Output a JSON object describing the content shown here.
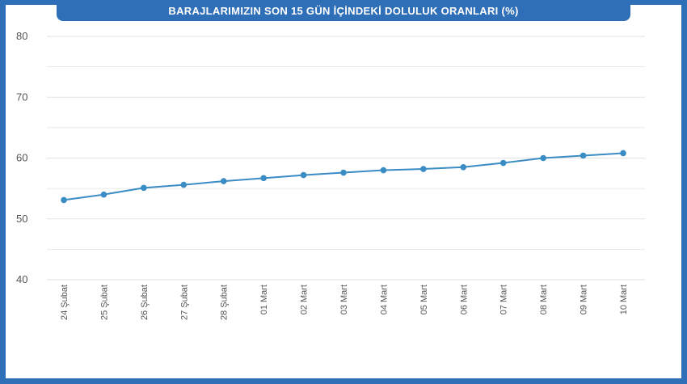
{
  "chart_data": {
    "type": "line",
    "title": "BARAJLARIMIZIN SON 15 GÜN İÇİNDEKİ DOLULUK ORANLARI (%)",
    "categories": [
      "24 Şubat",
      "25 Şubat",
      "26 Şubat",
      "27 Şubat",
      "28 Şubat",
      "01 Mart",
      "02 Mart",
      "03 Mart",
      "04 Mart",
      "05 Mart",
      "06 Mart",
      "07 Mart",
      "08 Mart",
      "09 Mart",
      "10 Mart"
    ],
    "series": [
      {
        "values": [
          53.1,
          54.0,
          55.1,
          55.6,
          56.2,
          56.7,
          57.2,
          57.6,
          58.0,
          58.2,
          58.5,
          59.2,
          60.0,
          60.4,
          60.8
        ]
      }
    ],
    "ylim": [
      40,
      80
    ],
    "y_ticks": [
      "80",
      "70",
      "60",
      "50",
      "40"
    ],
    "grid": true,
    "legend": "none",
    "colors": {
      "line": "#3a8cc4",
      "marker": "#3a8cc4",
      "grid": "#e2e2e2",
      "frame": "#2f6fb8",
      "title_text": "#ffffff",
      "tick_text": "#555555"
    }
  }
}
